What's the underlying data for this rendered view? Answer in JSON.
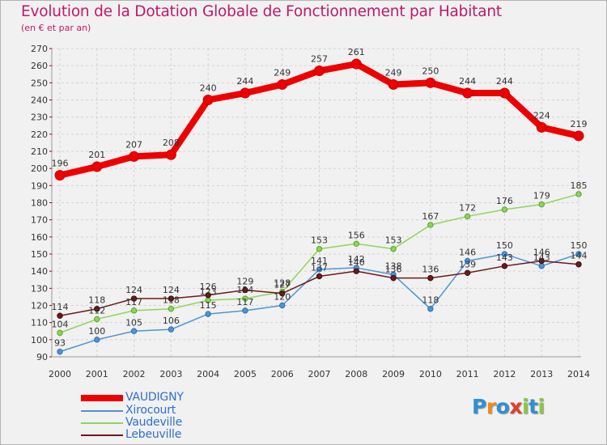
{
  "title": "Evolution de la Dotation Globale de Fonctionnement par Habitant",
  "subtitle": "(en € et par an)",
  "logo": {
    "text": "Proxiti"
  },
  "chart_data": {
    "type": "line",
    "x": [
      "2000",
      "2001",
      "2002",
      "2003",
      "2004",
      "2005",
      "2006",
      "2007",
      "2008",
      "2009",
      "2010",
      "2011",
      "2012",
      "2013",
      "2014"
    ],
    "yticks": [
      90,
      100,
      110,
      120,
      130,
      140,
      150,
      160,
      170,
      180,
      190,
      200,
      210,
      220,
      230,
      240,
      250,
      260,
      270
    ],
    "ylim": [
      90,
      270
    ],
    "grid": true,
    "legend_position": "bottom-left",
    "series": [
      {
        "name": "VAUDIGNY",
        "color": "#ee0000",
        "values": [
          196,
          201,
          207,
          208,
          240,
          244,
          249,
          257,
          261,
          249,
          250,
          244,
          244,
          224,
          219
        ],
        "labels": [
          "196",
          "201",
          "207",
          "208",
          "240",
          "244",
          "249",
          "257",
          "261",
          "249",
          "250",
          "244",
          "244",
          "224",
          "219"
        ]
      },
      {
        "name": "Xirocourt",
        "color": "#4e94d4",
        "values": [
          93,
          100,
          105,
          106,
          115,
          117,
          120,
          141,
          142,
          138,
          118,
          146,
          150,
          143,
          150
        ],
        "labels": [
          "93",
          "100",
          "105",
          "106",
          "115",
          "117",
          "120",
          "141",
          "142",
          "138",
          "118",
          "146",
          "150",
          "143",
          "150"
        ]
      },
      {
        "name": "Vaudeville",
        "color": "#8fd45a",
        "values": [
          104,
          112,
          117,
          118,
          123,
          124,
          128,
          153,
          156,
          153,
          167,
          172,
          176,
          179,
          185
        ],
        "labels": [
          "104",
          "112",
          "117",
          "118",
          "123",
          "124",
          "128",
          "153",
          "156",
          "153",
          "167",
          "172",
          "176",
          "179",
          "185"
        ]
      },
      {
        "name": "Lebeuville",
        "color": "#6e1a1a",
        "values": [
          114,
          118,
          124,
          124,
          126,
          129,
          127,
          137,
          140,
          136,
          136,
          139,
          143,
          146,
          144
        ],
        "labels": [
          "114",
          "118",
          "124",
          "124",
          "126",
          "129",
          "127",
          "137",
          "140",
          "136",
          "136",
          "139",
          "143",
          "146",
          "144"
        ]
      }
    ]
  }
}
